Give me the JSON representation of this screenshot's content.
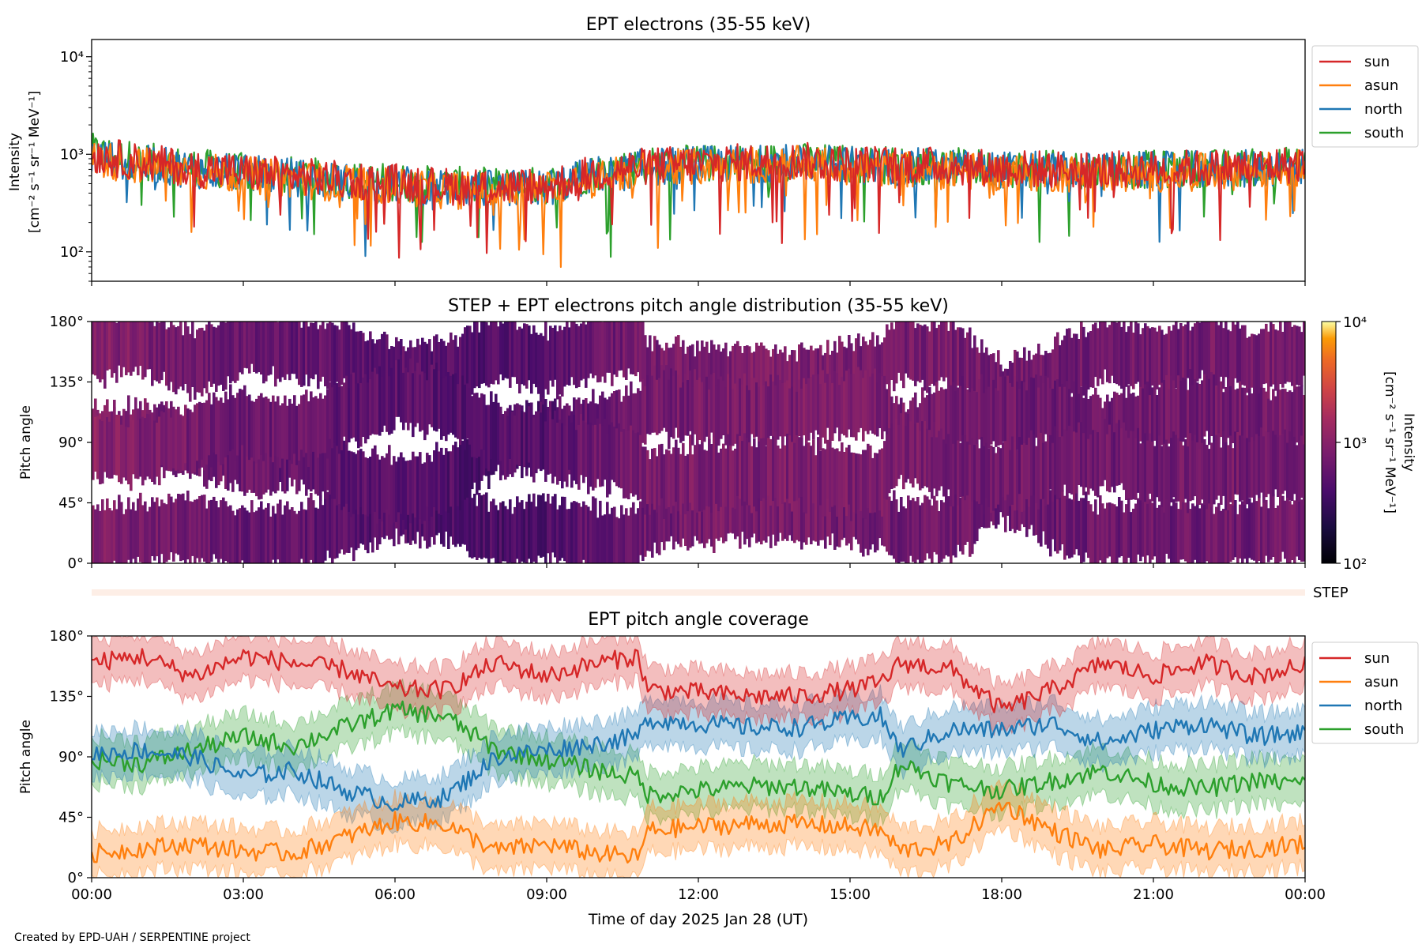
{
  "chart_data": [
    {
      "type": "line",
      "title": "EPT electrons (35-55 keV)",
      "ylabel_lines": [
        "Intensity",
        "[cm⁻² s⁻¹ sr⁻¹ MeV⁻¹]"
      ],
      "yscale": "log",
      "ylim": [
        50,
        15000
      ],
      "yticks": [
        {
          "value": 100,
          "label": "10²"
        },
        {
          "value": 1000,
          "label": "10³"
        },
        {
          "value": 10000,
          "label": "10⁴"
        }
      ],
      "xlim_hours": [
        0,
        24
      ],
      "legend": "outside-right",
      "series": [
        {
          "name": "sun",
          "color": "#d62728",
          "x_hours": [
            0,
            1,
            2,
            3,
            4,
            5,
            6,
            7,
            8,
            9,
            10,
            11,
            12,
            13,
            14,
            15,
            16,
            17,
            18,
            19,
            20,
            21,
            22,
            23,
            24
          ],
          "values": [
            1000,
            820,
            720,
            650,
            600,
            540,
            520,
            470,
            460,
            470,
            640,
            760,
            800,
            830,
            850,
            800,
            780,
            760,
            720,
            700,
            690,
            700,
            720,
            740,
            800
          ]
        },
        {
          "name": "asun",
          "color": "#ff7f0e",
          "x_hours": [
            0,
            1,
            2,
            3,
            4,
            5,
            6,
            7,
            8,
            9,
            10,
            11,
            12,
            13,
            14,
            15,
            16,
            17,
            18,
            19,
            20,
            21,
            22,
            23,
            24
          ],
          "values": [
            900,
            760,
            680,
            610,
            560,
            500,
            470,
            430,
            420,
            430,
            580,
            700,
            740,
            770,
            780,
            740,
            700,
            680,
            650,
            640,
            630,
            640,
            660,
            680,
            720
          ]
        },
        {
          "name": "north",
          "color": "#1f77b4",
          "x_hours": [
            0,
            1,
            2,
            3,
            4,
            5,
            6,
            7,
            8,
            9,
            10,
            11,
            12,
            13,
            14,
            15,
            16,
            17,
            18,
            19,
            20,
            21,
            22,
            23,
            24
          ],
          "values": [
            950,
            800,
            700,
            630,
            580,
            520,
            500,
            450,
            440,
            450,
            620,
            740,
            780,
            810,
            820,
            780,
            750,
            730,
            690,
            680,
            670,
            680,
            700,
            710,
            760
          ]
        },
        {
          "name": "south",
          "color": "#2ca02c",
          "x_hours": [
            0,
            1,
            2,
            3,
            4,
            5,
            6,
            7,
            8,
            9,
            10,
            11,
            12,
            13,
            14,
            15,
            16,
            17,
            18,
            19,
            20,
            21,
            22,
            23,
            24
          ],
          "values": [
            1050,
            850,
            740,
            660,
            610,
            550,
            520,
            480,
            470,
            480,
            650,
            760,
            800,
            830,
            840,
            800,
            770,
            750,
            710,
            700,
            690,
            700,
            720,
            730,
            780
          ]
        }
      ]
    },
    {
      "type": "heatmap",
      "title": "STEP + EPT electrons pitch angle distribution (35-55 keV)",
      "ylabel": "Pitch angle",
      "ylim_deg": [
        0,
        180
      ],
      "yticks": [
        "0°",
        "45°",
        "90°",
        "135°",
        "180°"
      ],
      "colorbar": {
        "label_lines": [
          "Intensity",
          "[cm⁻² s⁻¹ sr⁻¹ MeV⁻¹]"
        ],
        "scale": "log",
        "range": [
          100,
          10000
        ],
        "ticks": [
          "10²",
          "10³",
          "10⁴"
        ],
        "colormap": "inferno"
      },
      "note": "Each EPT telescope (sun, asun, north, south) fills its pitch-angle coverage band with its measured intensity; gaps are white.",
      "step_bar_label": "STEP"
    },
    {
      "type": "line",
      "title": "EPT pitch angle coverage",
      "ylabel": "Pitch angle",
      "xlabel": "Time of day 2025 Jan 28 (UT)",
      "ylim_deg": [
        0,
        180
      ],
      "yticks": [
        "0°",
        "45°",
        "90°",
        "135°",
        "180°"
      ],
      "xtick_labels": [
        "00:00",
        "03:00",
        "06:00",
        "09:00",
        "12:00",
        "15:00",
        "18:00",
        "21:00",
        "00:00"
      ],
      "xlim_hours": [
        0,
        24
      ],
      "legend": "outside-right",
      "series": [
        {
          "name": "sun",
          "color": "#d62728",
          "x_hours": [
            0,
            1,
            2,
            3,
            4,
            5,
            6,
            7,
            8,
            9,
            10,
            10.8,
            11,
            12,
            13,
            14,
            15,
            15.6,
            16,
            17,
            18,
            19,
            20,
            21,
            22,
            23,
            24
          ],
          "values": [
            160,
            165,
            150,
            165,
            160,
            155,
            140,
            140,
            160,
            150,
            160,
            165,
            140,
            138,
            135,
            135,
            140,
            145,
            160,
            155,
            125,
            140,
            160,
            150,
            160,
            150,
            158
          ]
        },
        {
          "name": "asun",
          "color": "#ff7f0e",
          "x_hours": [
            0,
            1,
            2,
            3,
            4,
            5,
            6,
            7,
            8,
            9,
            10,
            10.8,
            11,
            12,
            13,
            14,
            15,
            15.6,
            16,
            17,
            18,
            19,
            20,
            21,
            22,
            23,
            24
          ],
          "values": [
            18,
            22,
            25,
            20,
            18,
            30,
            42,
            40,
            20,
            25,
            18,
            15,
            35,
            38,
            40,
            40,
            38,
            35,
            20,
            25,
            55,
            35,
            20,
            25,
            20,
            22,
            25
          ]
        },
        {
          "name": "north",
          "color": "#1f77b4",
          "x_hours": [
            0,
            1,
            2,
            3,
            4,
            5,
            6,
            7,
            8,
            9,
            10,
            10.8,
            11,
            12,
            13,
            14,
            15,
            15.6,
            16,
            17,
            18,
            19,
            20,
            21,
            22,
            23,
            24
          ],
          "values": [
            92,
            95,
            90,
            75,
            80,
            65,
            55,
            60,
            90,
            95,
            100,
            105,
            118,
            115,
            112,
            112,
            118,
            120,
            95,
            110,
            110,
            115,
            100,
            110,
            115,
            105,
            108
          ]
        },
        {
          "name": "south",
          "color": "#2ca02c",
          "x_hours": [
            0,
            1,
            2,
            3,
            4,
            5,
            6,
            7,
            8,
            9,
            10,
            10.8,
            11,
            12,
            13,
            14,
            15,
            15.6,
            16,
            17,
            18,
            19,
            20,
            21,
            22,
            23,
            24
          ],
          "values": [
            88,
            85,
            95,
            105,
            98,
            112,
            125,
            120,
            95,
            88,
            80,
            75,
            62,
            65,
            68,
            68,
            62,
            60,
            85,
            70,
            65,
            72,
            80,
            70,
            66,
            72,
            70
          ]
        }
      ]
    }
  ],
  "footer": "Created by EPD-UAH / SERPENTINE project"
}
